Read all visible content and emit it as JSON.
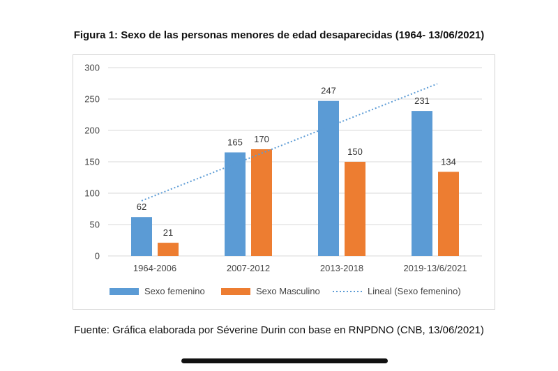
{
  "title": "Figura 1: Sexo de las personas menores de edad desaparecidas (1964- 13/06/2021)",
  "caption": "Fuente: Gráfica elaborada por Séverine Durin con base en RNPDNO (CNB, 13/06/2021)",
  "colors": {
    "femenino": "#5b9bd5",
    "masculino": "#ed7d31",
    "trendline": "#5b9bd5",
    "grid": "#d9d9d9"
  },
  "chart_data": {
    "type": "bar",
    "categories": [
      "1964-2006",
      "2007-2012",
      "2013-2018",
      "2019-13/6/2021"
    ],
    "series": [
      {
        "name": "Sexo femenino",
        "values": [
          62,
          165,
          247,
          231
        ]
      },
      {
        "name": "Sexo Masculino",
        "values": [
          21,
          170,
          150,
          134
        ]
      }
    ],
    "trendline": {
      "name": "Lineal (Sexo femenino)",
      "type": "linear",
      "of_series": "Sexo femenino"
    },
    "ylim": [
      0,
      300
    ],
    "yticks": [
      0,
      50,
      100,
      150,
      200,
      250,
      300
    ],
    "grid": true,
    "legend": "bottom",
    "xlabel": "",
    "ylabel": ""
  }
}
